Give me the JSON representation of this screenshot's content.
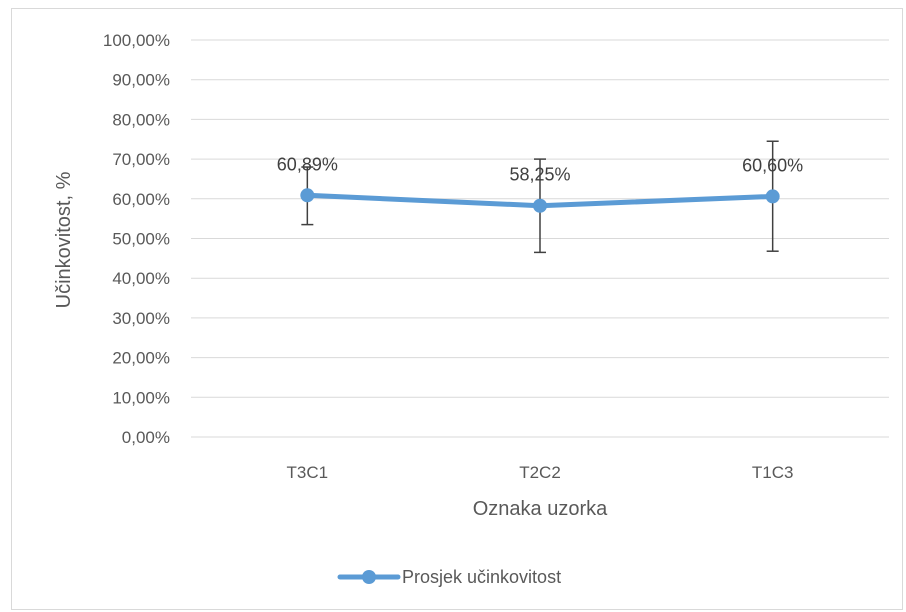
{
  "chart_data": {
    "type": "line",
    "title": "",
    "xlabel": "Oznaka uzorka",
    "ylabel": "Učinkovitost, %",
    "categories": [
      "T3C1",
      "T2C2",
      "T1C3"
    ],
    "series": [
      {
        "name": "Prosjek učinkovitost",
        "values": [
          0.6089,
          0.5825,
          0.606
        ],
        "error_low": [
          0.535,
          0.465,
          0.468
        ],
        "error_high": [
          0.68,
          0.7,
          0.745
        ],
        "data_labels": [
          "60,89%",
          "58,25%",
          "60,60%"
        ],
        "color": "#5b9bd5"
      }
    ],
    "ylim": [
      0,
      1
    ],
    "y_ticks": [
      "0,00%",
      "10,00%",
      "20,00%",
      "30,00%",
      "40,00%",
      "50,00%",
      "60,00%",
      "70,00%",
      "80,00%",
      "90,00%",
      "100,00%"
    ],
    "grid": true,
    "legend": "bottom",
    "colors": {
      "series": "#5b9bd5",
      "gridline": "#d9d9d9",
      "error_bar": "#404040",
      "text": "#595959"
    }
  }
}
